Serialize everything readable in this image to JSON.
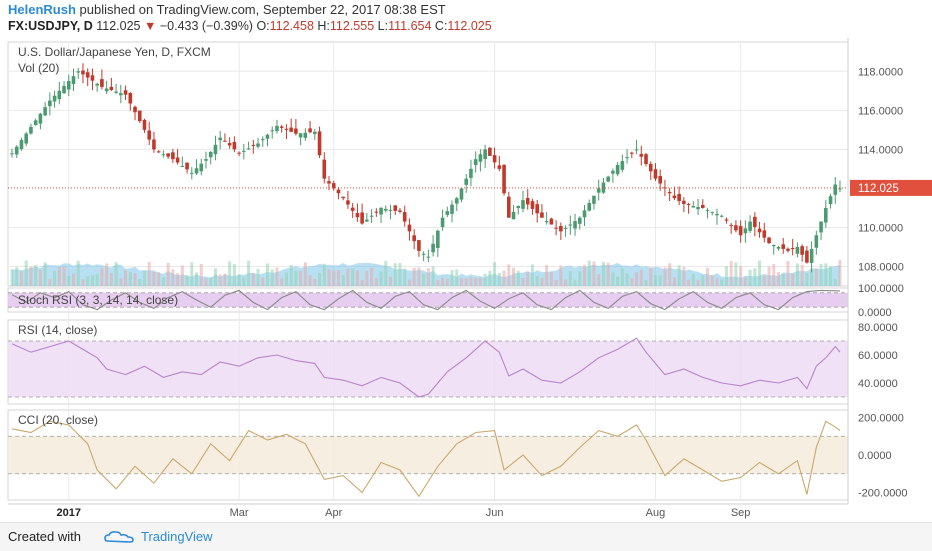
{
  "header": {
    "author": "HelenRush",
    "published_text": "published on TradingView.com, September 22, 2017 08:38 EST",
    "symbol": "FX:USDJPY, D",
    "last": "112.025",
    "change": "−0.433 (−0.39%)",
    "open_label": "O:",
    "open": "112.458",
    "high_label": "H:",
    "high": "112.555",
    "low_label": "L:",
    "low": "111.654",
    "close_label": "C:",
    "close": "112.025"
  },
  "chart_data": [
    {
      "type": "candlestick",
      "title": "U.S. Dollar/Japanese Yen, D, FXCM",
      "volume_label": "Vol (20)",
      "ylim": [
        107,
        119.5
      ],
      "y_ticks": [
        "118.0000",
        "116.0000",
        "114.0000",
        "110.0000",
        "108.0000"
      ],
      "y_tick_values": [
        118,
        116,
        114,
        110,
        108
      ],
      "last_price_label": "112.025",
      "last_price": 112.025,
      "x_tick_labels": [
        "2017",
        "Mar",
        "Apr",
        "Jun",
        "Aug",
        "Sep"
      ],
      "close_path": [
        [
          0,
          113.8
        ],
        [
          8,
          116.5
        ],
        [
          14,
          118.0
        ],
        [
          19,
          117.2
        ],
        [
          24,
          116.8
        ],
        [
          28,
          115.0
        ],
        [
          30,
          114.0
        ],
        [
          34,
          113.5
        ],
        [
          38,
          112.8
        ],
        [
          41,
          113.5
        ],
        [
          44,
          114.6
        ],
        [
          48,
          113.8
        ],
        [
          52,
          114.3
        ],
        [
          56,
          115.2
        ],
        [
          60,
          114.8
        ],
        [
          64,
          114.9
        ],
        [
          66,
          112.5
        ],
        [
          70,
          111.5
        ],
        [
          74,
          110.2
        ],
        [
          78,
          111.0
        ],
        [
          82,
          110.8
        ],
        [
          86,
          108.8
        ],
        [
          88,
          108.5
        ],
        [
          91,
          110.5
        ],
        [
          94,
          111.5
        ],
        [
          98,
          113.5
        ],
        [
          100,
          114.0
        ],
        [
          103,
          113.0
        ],
        [
          105,
          110.5
        ],
        [
          108,
          111.4
        ],
        [
          112,
          110.5
        ],
        [
          116,
          109.8
        ],
        [
          120,
          110.5
        ],
        [
          124,
          112.0
        ],
        [
          128,
          113.2
        ],
        [
          132,
          114.0
        ],
        [
          136,
          112.5
        ],
        [
          140,
          111.5
        ],
        [
          142,
          111.2
        ],
        [
          146,
          111.0
        ],
        [
          150,
          110.6
        ],
        [
          154,
          109.6
        ],
        [
          156,
          110.3
        ],
        [
          160,
          109.2
        ],
        [
          164,
          108.8
        ],
        [
          166,
          109.0
        ],
        [
          168,
          108.2
        ],
        [
          170,
          109.6
        ],
        [
          172,
          111.0
        ],
        [
          174,
          112.2
        ],
        [
          175,
          112.0
        ]
      ]
    },
    {
      "type": "line",
      "title": "Stoch RSI (3, 3, 14, 14, close)",
      "ylim": [
        0,
        100
      ],
      "y_ticks": [
        "100.0000",
        "0.0000"
      ],
      "y_tick_values": [
        100,
        0
      ],
      "bands": [
        20,
        80
      ],
      "values": [
        [
          0,
          72
        ],
        [
          3,
          40
        ],
        [
          6,
          80
        ],
        [
          9,
          60
        ],
        [
          12,
          85
        ],
        [
          15,
          30
        ],
        [
          18,
          10
        ],
        [
          21,
          50
        ],
        [
          24,
          80
        ],
        [
          27,
          40
        ],
        [
          30,
          15
        ],
        [
          33,
          60
        ],
        [
          36,
          85
        ],
        [
          39,
          50
        ],
        [
          42,
          20
        ],
        [
          45,
          70
        ],
        [
          48,
          90
        ],
        [
          51,
          40
        ],
        [
          54,
          10
        ],
        [
          57,
          60
        ],
        [
          60,
          85
        ],
        [
          63,
          30
        ],
        [
          66,
          10
        ],
        [
          69,
          55
        ],
        [
          72,
          90
        ],
        [
          75,
          40
        ],
        [
          78,
          15
        ],
        [
          81,
          65
        ],
        [
          84,
          85
        ],
        [
          87,
          30
        ],
        [
          90,
          10
        ],
        [
          93,
          60
        ],
        [
          96,
          90
        ],
        [
          99,
          45
        ],
        [
          102,
          15
        ],
        [
          105,
          55
        ],
        [
          108,
          80
        ],
        [
          111,
          30
        ],
        [
          114,
          10
        ],
        [
          117,
          60
        ],
        [
          120,
          90
        ],
        [
          123,
          40
        ],
        [
          126,
          15
        ],
        [
          129,
          65
        ],
        [
          132,
          85
        ],
        [
          135,
          35
        ],
        [
          138,
          10
        ],
        [
          141,
          55
        ],
        [
          144,
          85
        ],
        [
          147,
          40
        ],
        [
          150,
          15
        ],
        [
          153,
          60
        ],
        [
          156,
          80
        ],
        [
          159,
          30
        ],
        [
          162,
          10
        ],
        [
          165,
          60
        ],
        [
          168,
          85
        ],
        [
          171,
          90
        ],
        [
          175,
          88
        ]
      ]
    },
    {
      "type": "line",
      "title": "RSI (14, close)",
      "ylim": [
        25,
        85
      ],
      "y_ticks": [
        "80.0000",
        "60.0000",
        "40.0000"
      ],
      "y_tick_values": [
        80,
        60,
        40
      ],
      "bands": [
        30,
        70
      ],
      "values": [
        [
          0,
          68
        ],
        [
          4,
          62
        ],
        [
          8,
          66
        ],
        [
          12,
          70
        ],
        [
          15,
          64
        ],
        [
          18,
          58
        ],
        [
          20,
          50
        ],
        [
          24,
          46
        ],
        [
          28,
          52
        ],
        [
          32,
          44
        ],
        [
          36,
          48
        ],
        [
          40,
          46
        ],
        [
          44,
          55
        ],
        [
          48,
          52
        ],
        [
          52,
          58
        ],
        [
          56,
          60
        ],
        [
          60,
          56
        ],
        [
          64,
          54
        ],
        [
          66,
          44
        ],
        [
          70,
          42
        ],
        [
          74,
          38
        ],
        [
          78,
          44
        ],
        [
          82,
          40
        ],
        [
          86,
          30
        ],
        [
          88,
          32
        ],
        [
          92,
          48
        ],
        [
          96,
          58
        ],
        [
          100,
          70
        ],
        [
          103,
          62
        ],
        [
          105,
          45
        ],
        [
          108,
          50
        ],
        [
          112,
          42
        ],
        [
          116,
          40
        ],
        [
          120,
          48
        ],
        [
          124,
          58
        ],
        [
          128,
          64
        ],
        [
          132,
          72
        ],
        [
          134,
          62
        ],
        [
          138,
          46
        ],
        [
          142,
          50
        ],
        [
          146,
          44
        ],
        [
          150,
          40
        ],
        [
          154,
          38
        ],
        [
          158,
          42
        ],
        [
          162,
          40
        ],
        [
          166,
          44
        ],
        [
          168,
          36
        ],
        [
          170,
          52
        ],
        [
          172,
          58
        ],
        [
          174,
          66
        ],
        [
          175,
          62
        ]
      ]
    },
    {
      "type": "line",
      "title": "CCI (20, close)",
      "ylim": [
        -240,
        240
      ],
      "y_ticks": [
        "200.0000",
        "0.0000",
        "-200.0000"
      ],
      "y_tick_values": [
        200,
        0,
        -200
      ],
      "bands": [
        -100,
        100
      ],
      "values": [
        [
          0,
          140
        ],
        [
          4,
          120
        ],
        [
          8,
          180
        ],
        [
          12,
          160
        ],
        [
          16,
          60
        ],
        [
          18,
          -80
        ],
        [
          22,
          -180
        ],
        [
          26,
          -60
        ],
        [
          30,
          -150
        ],
        [
          34,
          -20
        ],
        [
          38,
          -100
        ],
        [
          42,
          60
        ],
        [
          46,
          -30
        ],
        [
          50,
          130
        ],
        [
          54,
          80
        ],
        [
          58,
          110
        ],
        [
          62,
          60
        ],
        [
          66,
          -130
        ],
        [
          70,
          -110
        ],
        [
          74,
          -200
        ],
        [
          78,
          -40
        ],
        [
          82,
          -80
        ],
        [
          86,
          -220
        ],
        [
          90,
          -60
        ],
        [
          94,
          60
        ],
        [
          98,
          120
        ],
        [
          102,
          130
        ],
        [
          104,
          -80
        ],
        [
          108,
          0
        ],
        [
          112,
          -110
        ],
        [
          116,
          -60
        ],
        [
          120,
          40
        ],
        [
          124,
          130
        ],
        [
          128,
          100
        ],
        [
          132,
          160
        ],
        [
          134,
          80
        ],
        [
          138,
          -110
        ],
        [
          142,
          -20
        ],
        [
          146,
          -80
        ],
        [
          150,
          -140
        ],
        [
          154,
          -120
        ],
        [
          158,
          -40
        ],
        [
          162,
          -100
        ],
        [
          166,
          -30
        ],
        [
          168,
          -210
        ],
        [
          170,
          40
        ],
        [
          172,
          180
        ],
        [
          174,
          150
        ],
        [
          175,
          130
        ]
      ]
    }
  ],
  "footer": {
    "created_with": "Created with",
    "brand": "TradingView"
  },
  "colors": {
    "up": "#4c9a72",
    "down": "#c0392b",
    "grid": "#e9e9e9",
    "stoch_band": "#e3c6ef",
    "rsi_band": "#efdcf6",
    "cci_band": "#f4ecdc",
    "volume_area": "#7fc6e8",
    "price_label": "#e0503c"
  }
}
